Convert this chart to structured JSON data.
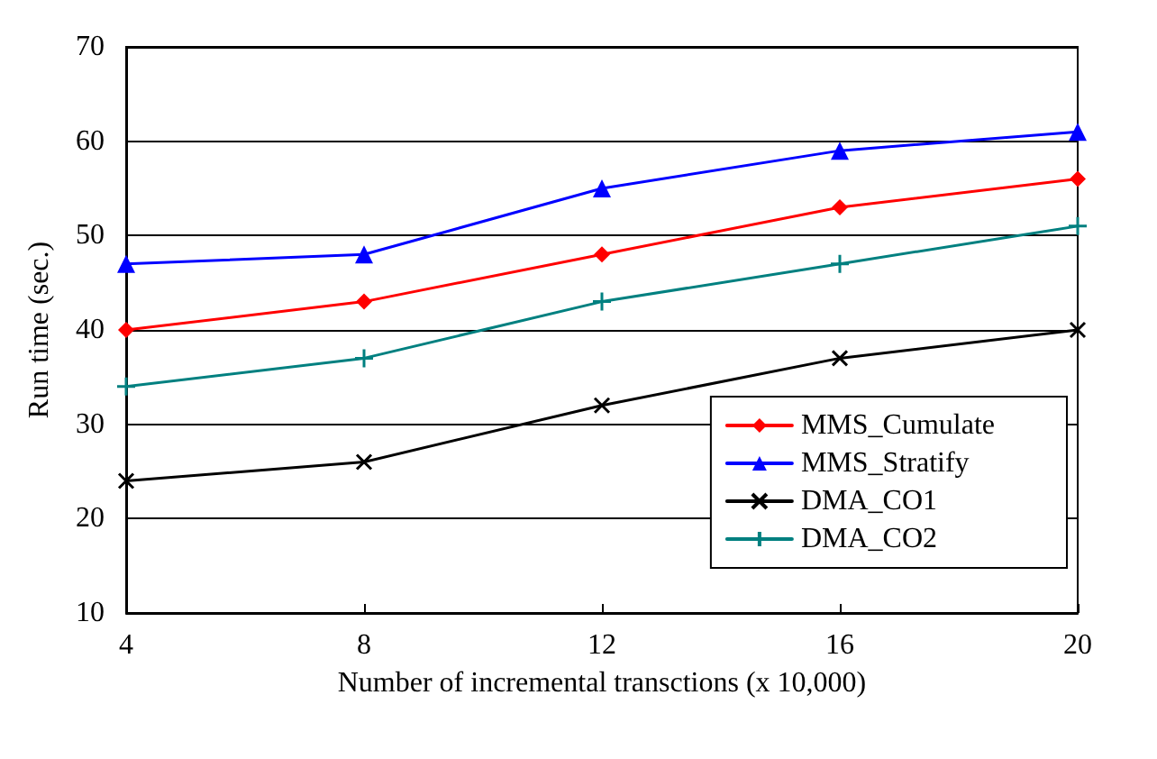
{
  "chart_data": {
    "type": "line",
    "xlabel": "Number of incremental transctions (x 10,000)",
    "ylabel": "Run time (sec.)",
    "x": [
      4,
      8,
      12,
      16,
      20
    ],
    "series": [
      {
        "name": "MMS_Cumulate",
        "color": "#ff0000",
        "marker": "diamond",
        "values": [
          40,
          43,
          48,
          53,
          56
        ]
      },
      {
        "name": "MMS_Stratify",
        "color": "#0000ff",
        "marker": "triangle",
        "values": [
          47,
          48,
          55,
          59,
          61
        ]
      },
      {
        "name": "DMA_CO1",
        "color": "#000000",
        "marker": "cross",
        "values": [
          24,
          26,
          32,
          37,
          40
        ]
      },
      {
        "name": "DMA_CO2",
        "color": "#008080",
        "marker": "plus",
        "values": [
          34,
          37,
          43,
          47,
          51
        ]
      }
    ],
    "xlim": [
      4,
      20
    ],
    "xticks": [
      4,
      8,
      12,
      16,
      20
    ],
    "ylim": [
      10,
      70
    ],
    "yticks": [
      10,
      20,
      30,
      40,
      50,
      60,
      70
    ],
    "grid": "y",
    "legend": "bottom right",
    "line_style": "solid"
  }
}
